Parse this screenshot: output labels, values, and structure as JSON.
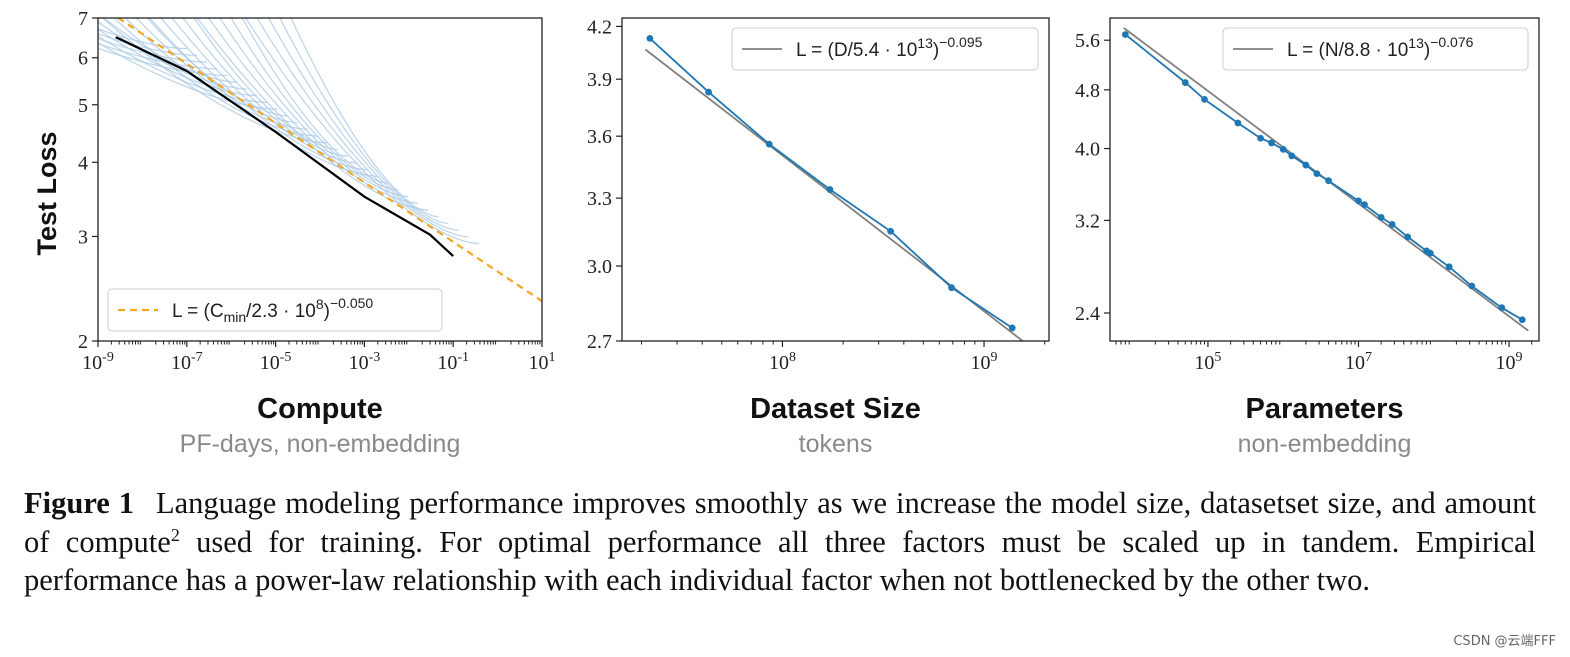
{
  "figure": {
    "label": "Figure 1",
    "caption_part1": "Language modeling performance improves smoothly as we increase the model size, datasetset size, and amount of compute",
    "caption_sup": "2",
    "caption_part2": " used for training. For optimal performance all three factors must be scaled up in tandem. Empirical performance has a power-law relationship with each individual factor when not bottlenecked by the other two."
  },
  "watermark": "CSDN @云端FFF",
  "colors": {
    "fit_line": "#f5a623",
    "curves": "#a9c8e4",
    "frontier": "#000000",
    "data": "#1f77b4",
    "fit_gray": "#808080"
  },
  "chart_data": [
    {
      "type": "line",
      "title": "",
      "xlabel": "Compute",
      "xsublabel": "PF-days, non-embedding",
      "ylabel": "Test Loss",
      "xscale": "log",
      "yscale": "log",
      "xlim": [
        1e-09,
        10
      ],
      "ylim": [
        2,
        7
      ],
      "xticks": [
        1e-09,
        1e-07,
        1e-05,
        0.001,
        0.1,
        10
      ],
      "xtick_exponents": [
        "-9",
        "-7",
        "-5",
        "-3",
        "-1",
        "1"
      ],
      "yticks": [
        2,
        3,
        4,
        5,
        6,
        7
      ],
      "ytick_labels": [
        "2",
        "3",
        "4",
        "5",
        "6",
        "7"
      ],
      "legend_position": "lower-left",
      "legend": {
        "prefix": "L = (C",
        "sub": "min",
        "mid": "/2.3 · 10",
        "sup1": "8",
        "close": ")",
        "sup2": "−0.050"
      },
      "fit": {
        "formula": "L = (Cmin/2.3e8)^-0.050",
        "scale": 230000000.0,
        "exponent": -0.05
      },
      "frontier": {
        "x": [
          2.5e-09,
          1e-07,
          1e-05,
          0.001,
          0.03,
          0.1
        ],
        "y": [
          6.5,
          5.7,
          4.5,
          3.5,
          3.02,
          2.78
        ]
      },
      "curves": {
        "count": 30,
        "description_hidden": true
      }
    },
    {
      "type": "line",
      "title": "",
      "xlabel": "Dataset Size",
      "xsublabel": "tokens",
      "ylabel": "",
      "xscale": "log",
      "yscale": "log",
      "xlim": [
        16000000.0,
        2100000000.0
      ],
      "ylim": [
        2.7,
        4.25
      ],
      "xticks": [
        100000000.0,
        1000000000.0
      ],
      "xtick_exponents": [
        "8",
        "9"
      ],
      "yticks": [
        2.7,
        3.0,
        3.3,
        3.6,
        3.9,
        4.2
      ],
      "ytick_labels": [
        "2.7",
        "3.0",
        "3.3",
        "3.6",
        "3.9",
        "4.2"
      ],
      "legend_position": "top-right",
      "legend": {
        "prefix": "L = (D/5.4 · 10",
        "sup1": "13",
        "close": ")",
        "sup2": "−0.095"
      },
      "fit": {
        "scale": 54000000000000.0,
        "exponent": -0.095
      },
      "series": [
        {
          "name": "",
          "x": [
            22000000.0,
            43000000.0,
            86000000.0,
            172000000.0,
            344000000.0,
            690000000.0,
            1380000000.0
          ],
          "values": [
            4.13,
            3.83,
            3.56,
            3.34,
            3.15,
            2.91,
            2.75
          ]
        }
      ]
    },
    {
      "type": "line",
      "title": "",
      "xlabel": "Parameters",
      "xsublabel": "non-embedding",
      "ylabel": "",
      "xscale": "log",
      "yscale": "log",
      "xlim": [
        5000.0,
        2500000000.0
      ],
      "ylim": [
        2.2,
        6.0
      ],
      "xticks": [
        100000.0,
        10000000.0,
        1000000000.0
      ],
      "xtick_exponents": [
        "5",
        "7",
        "9"
      ],
      "yticks": [
        2.4,
        3.2,
        4.0,
        4.8,
        5.6
      ],
      "ytick_labels": [
        "2.4",
        "3.2",
        "4.0",
        "4.8",
        "5.6"
      ],
      "legend_position": "top-right",
      "legend": {
        "prefix": "L = (N/8.8 · 10",
        "sup1": "13",
        "close": ")",
        "sup2": "−0.076"
      },
      "fit": {
        "scale": 88000000000000.0,
        "exponent": -0.076
      },
      "series": [
        {
          "name": "",
          "x": [
            8000.0,
            50000.0,
            90000.0,
            250000.0,
            500000.0,
            700000.0,
            1000000.0,
            1300000.0,
            2000000.0,
            2800000.0,
            4000000.0,
            10000000.0,
            12000000.0,
            20000000.0,
            28000000.0,
            45000000.0,
            80000000.0,
            90000000.0,
            160000000.0,
            320000000.0,
            800000000.0,
            1500000000.0
          ],
          "values": [
            5.7,
            4.91,
            4.66,
            4.33,
            4.13,
            4.07,
            3.99,
            3.91,
            3.8,
            3.7,
            3.62,
            3.4,
            3.36,
            3.23,
            3.16,
            3.04,
            2.91,
            2.89,
            2.77,
            2.61,
            2.44,
            2.35
          ]
        }
      ]
    }
  ]
}
